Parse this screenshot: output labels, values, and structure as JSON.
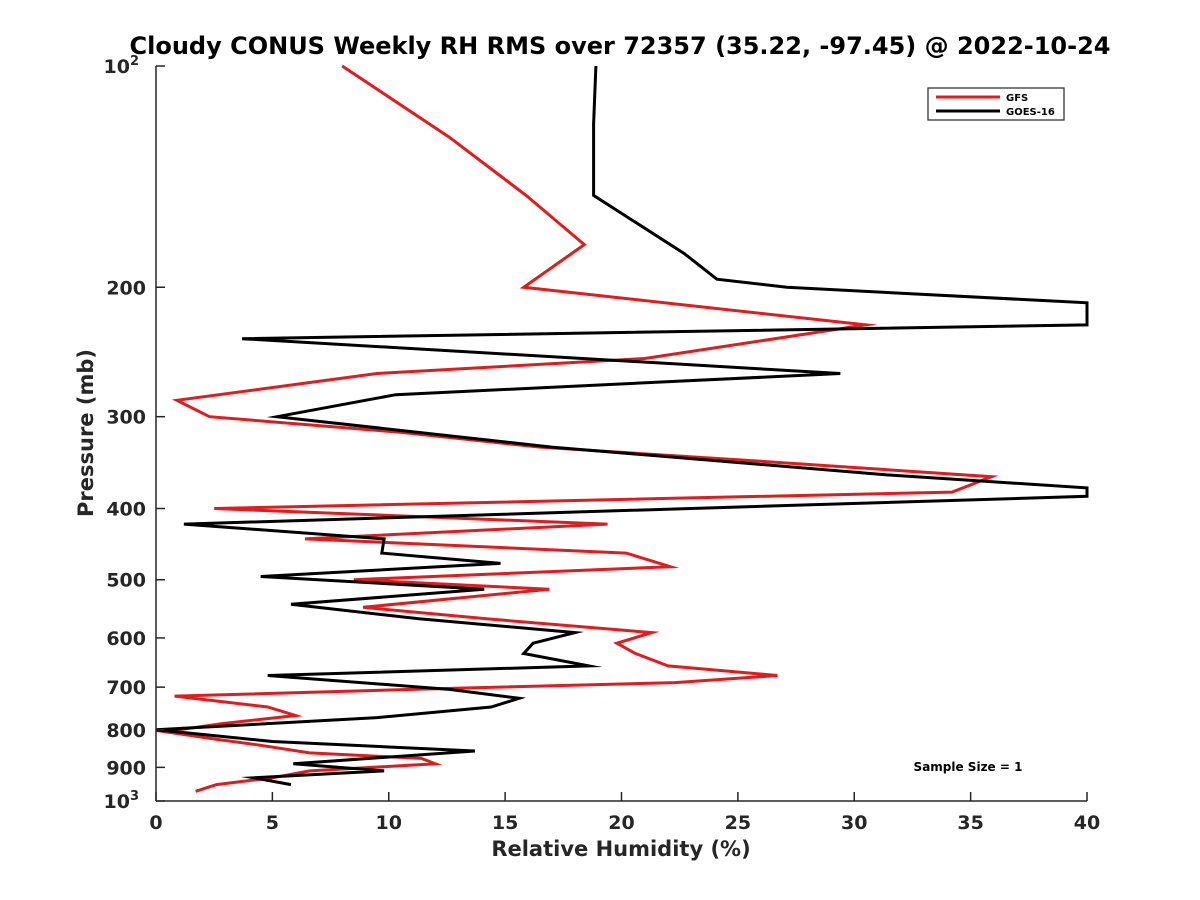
{
  "chart_data": {
    "type": "line",
    "title": "Cloudy CONUS Weekly RH RMS over 72357 (35.22, -97.45) @ 2022-10-24",
    "xlabel": "Relative Humidity (%)",
    "ylabel": "Pressure (mb)",
    "xlim": [
      0,
      40
    ],
    "ylim": [
      100,
      1000
    ],
    "y_scale": "log",
    "y_reversed": true,
    "grid": false,
    "legend_position": "top-right",
    "x_ticks": [
      0,
      5,
      10,
      15,
      20,
      25,
      30,
      35,
      40
    ],
    "x_tick_labels": [
      "0",
      "5",
      "10",
      "15",
      "20",
      "25",
      "30",
      "35",
      "40"
    ],
    "y_ticks": [
      {
        "value": 100,
        "label": "10",
        "sup": "2"
      },
      {
        "value": 200,
        "label": "200",
        "sup": ""
      },
      {
        "value": 300,
        "label": "300",
        "sup": ""
      },
      {
        "value": 400,
        "label": "400",
        "sup": ""
      },
      {
        "value": 500,
        "label": "500",
        "sup": ""
      },
      {
        "value": 600,
        "label": "600",
        "sup": ""
      },
      {
        "value": 700,
        "label": "700",
        "sup": ""
      },
      {
        "value": 800,
        "label": "800",
        "sup": ""
      },
      {
        "value": 900,
        "label": "900",
        "sup": ""
      },
      {
        "value": 1000,
        "label": "10",
        "sup": "3"
      }
    ],
    "annotation": "Sample Size = 1",
    "series": [
      {
        "name": "GFS",
        "color": "#e41a1c",
        "points": [
          [
            8.0,
            100
          ],
          [
            12.6,
            125
          ],
          [
            15.9,
            150
          ],
          [
            18.4,
            175
          ],
          [
            15.8,
            200
          ],
          [
            30.5,
            225
          ],
          [
            21.0,
            250
          ],
          [
            9.5,
            262
          ],
          [
            0.9,
            285
          ],
          [
            2.3,
            300
          ],
          [
            10.5,
            315
          ],
          [
            16.5,
            330
          ],
          [
            26.0,
            345
          ],
          [
            35.9,
            362
          ],
          [
            34.2,
            380
          ],
          [
            2.5,
            400
          ],
          [
            19.4,
            420
          ],
          [
            6.4,
            440
          ],
          [
            20.2,
            460
          ],
          [
            22.1,
            480
          ],
          [
            8.5,
            500
          ],
          [
            16.9,
            515
          ],
          [
            8.9,
            545
          ],
          [
            14.2,
            565
          ],
          [
            21.3,
            590
          ],
          [
            19.8,
            610
          ],
          [
            20.6,
            630
          ],
          [
            22.0,
            655
          ],
          [
            26.7,
            675
          ],
          [
            22.3,
            690
          ],
          [
            11.0,
            705
          ],
          [
            0.8,
            720
          ],
          [
            4.8,
            745
          ],
          [
            6.0,
            765
          ],
          [
            2.8,
            785
          ],
          [
            0.4,
            805
          ],
          [
            2.7,
            825
          ],
          [
            4.5,
            840
          ],
          [
            6.6,
            860
          ],
          [
            11.4,
            875
          ],
          [
            12.0,
            890
          ],
          [
            6.6,
            910
          ],
          [
            5.0,
            930
          ],
          [
            2.6,
            950
          ],
          [
            1.7,
            970
          ]
        ]
      },
      {
        "name": "GOES-16",
        "color": "#000000",
        "points": [
          [
            18.9,
            100
          ],
          [
            18.8,
            120
          ],
          [
            18.8,
            150
          ],
          [
            22.7,
            180
          ],
          [
            24.1,
            195
          ],
          [
            27.1,
            200
          ],
          [
            40.0,
            210
          ],
          [
            40.0,
            225
          ],
          [
            3.7,
            235
          ],
          [
            29.4,
            262
          ],
          [
            10.3,
            280
          ],
          [
            5.2,
            300
          ],
          [
            17.0,
            330
          ],
          [
            31.4,
            360
          ],
          [
            40.0,
            375
          ],
          [
            40.0,
            385
          ],
          [
            1.2,
            420
          ],
          [
            9.8,
            440
          ],
          [
            9.7,
            460
          ],
          [
            14.8,
            475
          ],
          [
            4.5,
            495
          ],
          [
            14.1,
            515
          ],
          [
            5.8,
            540
          ],
          [
            11.3,
            565
          ],
          [
            18.0,
            590
          ],
          [
            16.2,
            610
          ],
          [
            15.8,
            630
          ],
          [
            18.6,
            655
          ],
          [
            4.8,
            675
          ],
          [
            12.6,
            705
          ],
          [
            15.6,
            725
          ],
          [
            14.4,
            745
          ],
          [
            9.5,
            770
          ],
          [
            0.0,
            800
          ],
          [
            5.0,
            830
          ],
          [
            13.7,
            855
          ],
          [
            5.9,
            890
          ],
          [
            9.8,
            910
          ],
          [
            4.2,
            930
          ],
          [
            5.8,
            950
          ]
        ]
      }
    ]
  }
}
